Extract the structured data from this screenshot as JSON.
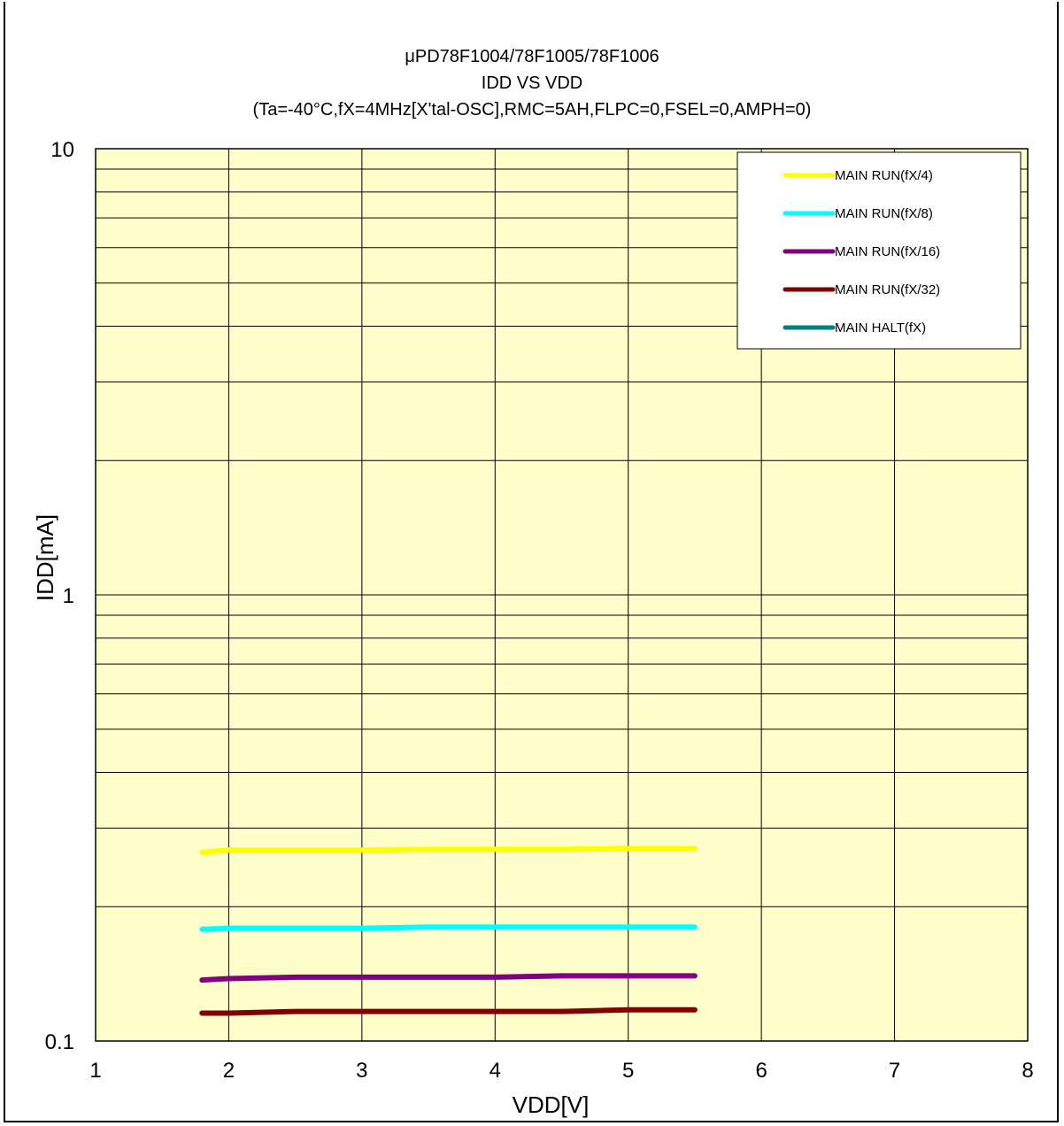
{
  "chart_data": {
    "type": "line",
    "title_lines": [
      "μPD78F1004/78F1005/78F1006",
      "IDD VS VDD",
      "(Ta=-40°C,fX=4MHz[X'tal-OSC],RMC=5AH,FLPC=0,FSEL=0,AMPH=0)"
    ],
    "xlabel": "VDD[V]",
    "ylabel": "IDD[mA]",
    "xlim": [
      1,
      8
    ],
    "ylim": [
      0.1,
      10
    ],
    "yscale": "log",
    "x_ticks": [
      "1",
      "2",
      "3",
      "4",
      "5",
      "6",
      "7",
      "8"
    ],
    "y_ticks": [
      "10",
      "1",
      "0.1"
    ],
    "grid": true,
    "background": "#ffffcc",
    "legend_position": "top-right",
    "series": [
      {
        "name": "MAIN RUN(fX/4)",
        "color": "#ffff00",
        "x": [
          1.8,
          2.0,
          2.5,
          3.0,
          3.5,
          4.0,
          4.5,
          5.0,
          5.5
        ],
        "y": [
          0.265,
          0.268,
          0.268,
          0.268,
          0.269,
          0.269,
          0.269,
          0.27,
          0.27
        ]
      },
      {
        "name": "MAIN RUN(fX/8)",
        "color": "#00ffff",
        "x": [
          1.8,
          2.0,
          2.5,
          3.0,
          3.5,
          4.0,
          4.5,
          5.0,
          5.5
        ],
        "y": [
          0.178,
          0.179,
          0.179,
          0.179,
          0.18,
          0.18,
          0.18,
          0.18,
          0.18
        ]
      },
      {
        "name": "MAIN RUN(fX/16)",
        "color": "#800080",
        "x": [
          1.8,
          2.0,
          2.5,
          3.0,
          3.5,
          4.0,
          4.5,
          5.0,
          5.5
        ],
        "y": [
          0.137,
          0.138,
          0.139,
          0.139,
          0.139,
          0.139,
          0.14,
          0.14,
          0.14
        ]
      },
      {
        "name": "MAIN RUN(fX/32)",
        "color": "#800000",
        "x": [
          1.8,
          2.0,
          2.5,
          3.0,
          3.5,
          4.0,
          4.5,
          5.0,
          5.5
        ],
        "y": [
          0.1155,
          0.1155,
          0.1165,
          0.1165,
          0.1165,
          0.1165,
          0.1165,
          0.1175,
          0.1175
        ]
      },
      {
        "name": "MAIN HALT(fX)",
        "color": "#008080",
        "x": [],
        "y": []
      }
    ]
  }
}
